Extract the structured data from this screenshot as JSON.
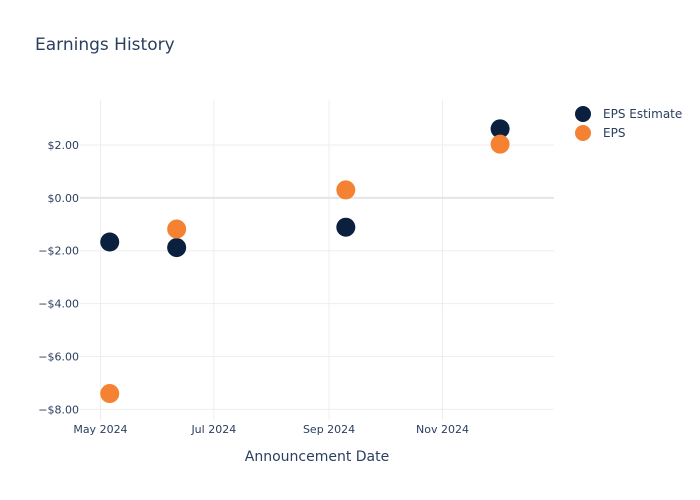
{
  "chart_data": {
    "type": "scatter",
    "title": "Earnings History",
    "xlabel": "Announcement Date",
    "ylabel": "",
    "x_type": "date",
    "xlim": [
      "2024-04-20",
      "2024-12-31"
    ],
    "ylim": [
      -8.4,
      3.7
    ],
    "grid": true,
    "legend_position": "top-right",
    "x_ticks": [
      {
        "value": "2024-05-01",
        "label": "May 2024"
      },
      {
        "value": "2024-07-01",
        "label": "Jul 2024"
      },
      {
        "value": "2024-09-01",
        "label": "Sep 2024"
      },
      {
        "value": "2024-11-01",
        "label": "Nov 2024"
      }
    ],
    "y_ticks": [
      {
        "value": 2,
        "label": "$2.00"
      },
      {
        "value": 0,
        "label": "$0.00"
      },
      {
        "value": -2,
        "label": "−$2.00"
      },
      {
        "value": -4,
        "label": "−$4.00"
      },
      {
        "value": -6,
        "label": "−$6.00"
      },
      {
        "value": -8,
        "label": "−$8.00"
      }
    ],
    "series": [
      {
        "name": "EPS Estimate",
        "color": "#0b1f3f",
        "points": [
          {
            "x": "2024-05-06",
            "y": -1.67
          },
          {
            "x": "2024-06-11",
            "y": -1.88
          },
          {
            "x": "2024-09-10",
            "y": -1.11
          },
          {
            "x": "2024-12-02",
            "y": 2.61
          }
        ]
      },
      {
        "name": "EPS",
        "color": "#f58233",
        "points": [
          {
            "x": "2024-05-06",
            "y": -7.4
          },
          {
            "x": "2024-06-11",
            "y": -1.18
          },
          {
            "x": "2024-09-10",
            "y": 0.3
          },
          {
            "x": "2024-12-02",
            "y": 2.03
          }
        ]
      }
    ]
  }
}
